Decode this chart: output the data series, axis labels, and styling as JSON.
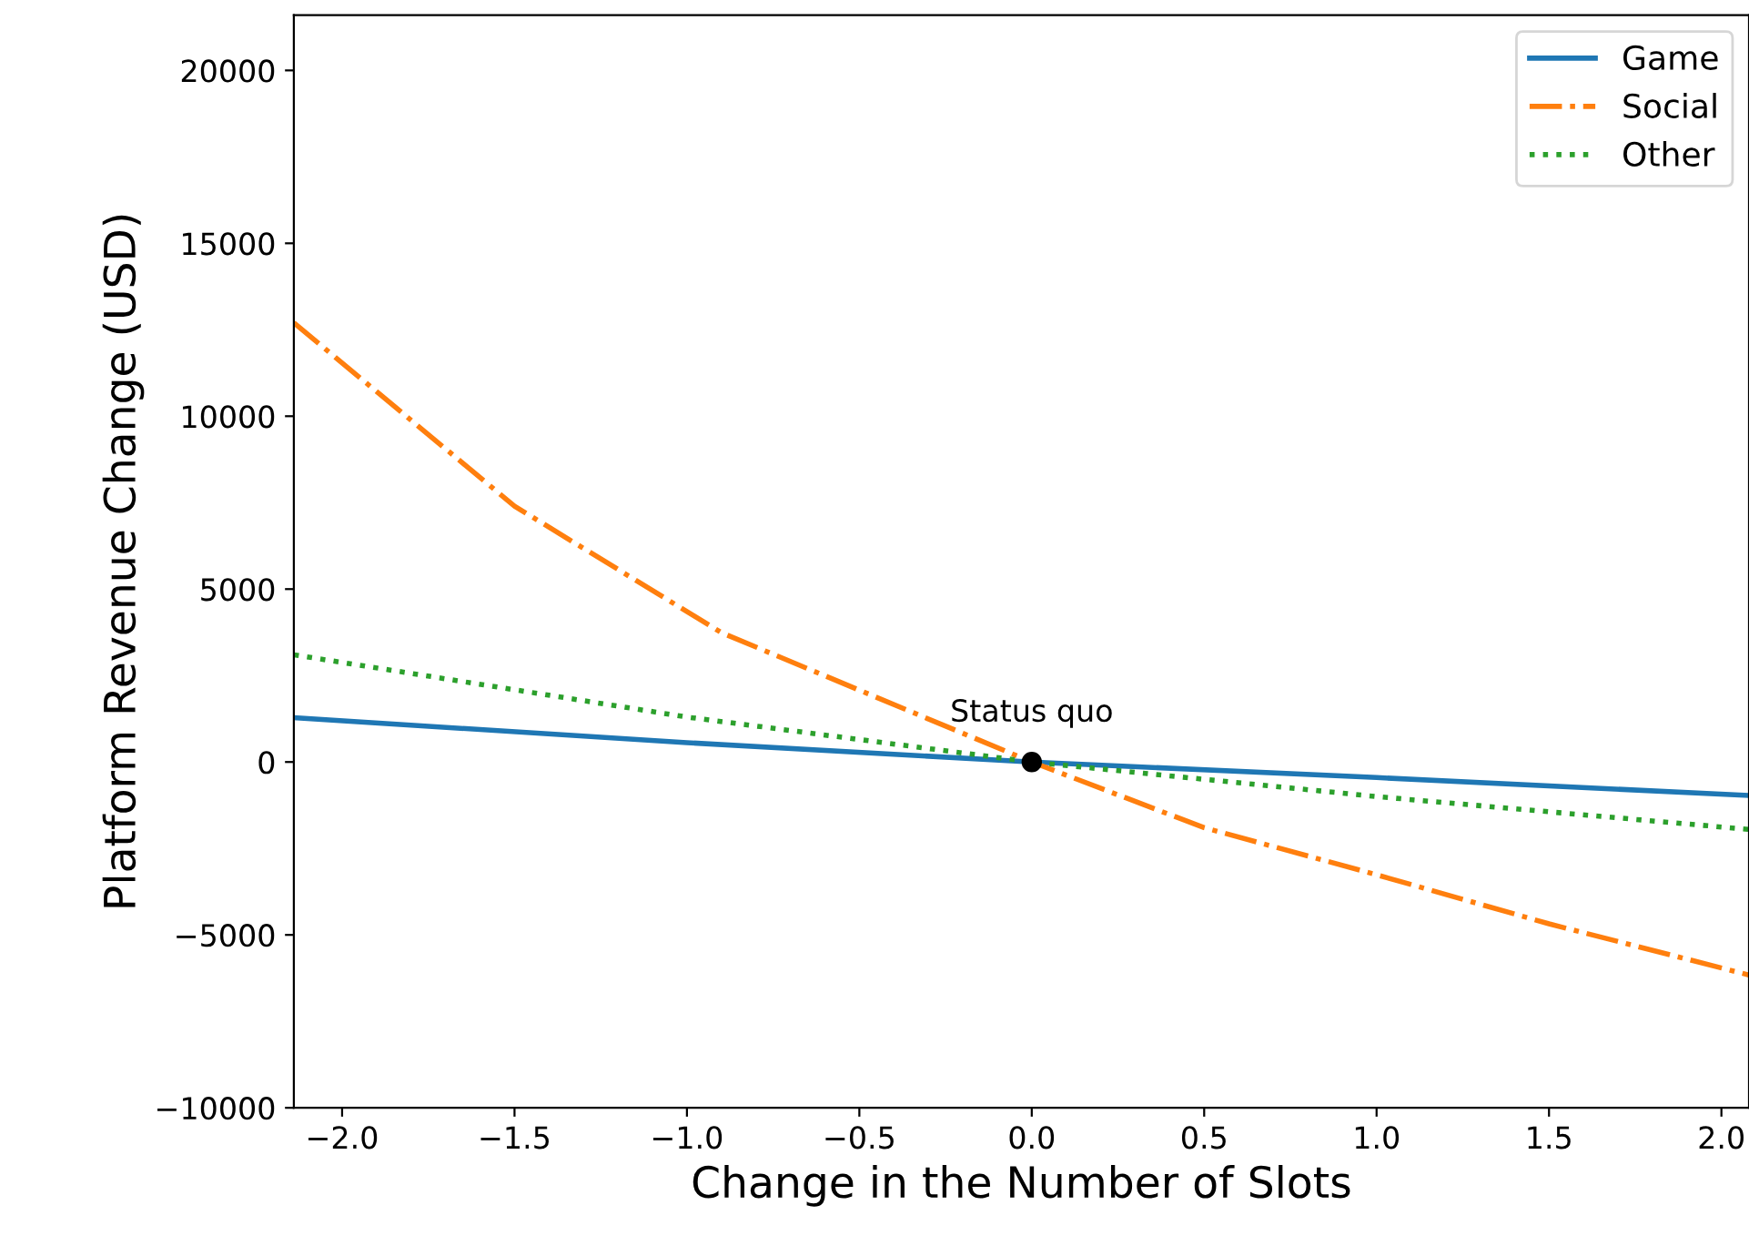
{
  "chart_data": {
    "type": "line",
    "xlabel": "Change in the Number of Slots",
    "ylabel": "Platform Revenue Change (USD)",
    "xlim": [
      -2.14,
      2.08
    ],
    "ylim": [
      -10000,
      21600
    ],
    "xticks": [
      {
        "value": -2.0,
        "label": "−2.0"
      },
      {
        "value": -1.5,
        "label": "−1.5"
      },
      {
        "value": -1.0,
        "label": "−1.0"
      },
      {
        "value": -0.5,
        "label": "−0.5"
      },
      {
        "value": 0.0,
        "label": "0.0"
      },
      {
        "value": 0.5,
        "label": "0.5"
      },
      {
        "value": 1.0,
        "label": "1.0"
      },
      {
        "value": 1.5,
        "label": "1.5"
      },
      {
        "value": 2.0,
        "label": "2.0"
      }
    ],
    "yticks": [
      {
        "value": -10000,
        "label": "−10000"
      },
      {
        "value": -5000,
        "label": "−5000"
      },
      0,
      5000,
      10000,
      15000,
      20000
    ],
    "grid": false,
    "legend": "top right",
    "series": [
      {
        "name": "Game",
        "color": "#1f77b4",
        "line_style": "solid",
        "x": [
          -2.14,
          -1.0,
          0.0,
          1.0,
          2.08
        ],
        "values": [
          1280,
          560,
          0,
          -450,
          -970
        ]
      },
      {
        "name": "Social",
        "color": "#ff7f0e",
        "line_style": "dashdot",
        "x": [
          -2.14,
          -1.5,
          -0.9,
          0.0,
          0.5,
          1.0,
          1.5,
          2.08
        ],
        "values": [
          12700,
          7400,
          3740,
          0,
          -1900,
          -3260,
          -4680,
          -6160
        ]
      },
      {
        "name": "Other",
        "color": "#2ca02c",
        "line_style": "dotted",
        "x": [
          -2.14,
          -1.0,
          0.0,
          1.0,
          2.08
        ],
        "values": [
          3100,
          1300,
          0,
          -1000,
          -1950
        ]
      },
      {
        "type": "scatter",
        "color": "#000000",
        "marker": "circle",
        "x": [
          0.0
        ],
        "values": [
          0
        ]
      }
    ],
    "annotations": [
      {
        "text": "Status quo",
        "x": 0.0,
        "y": 0
      }
    ]
  }
}
